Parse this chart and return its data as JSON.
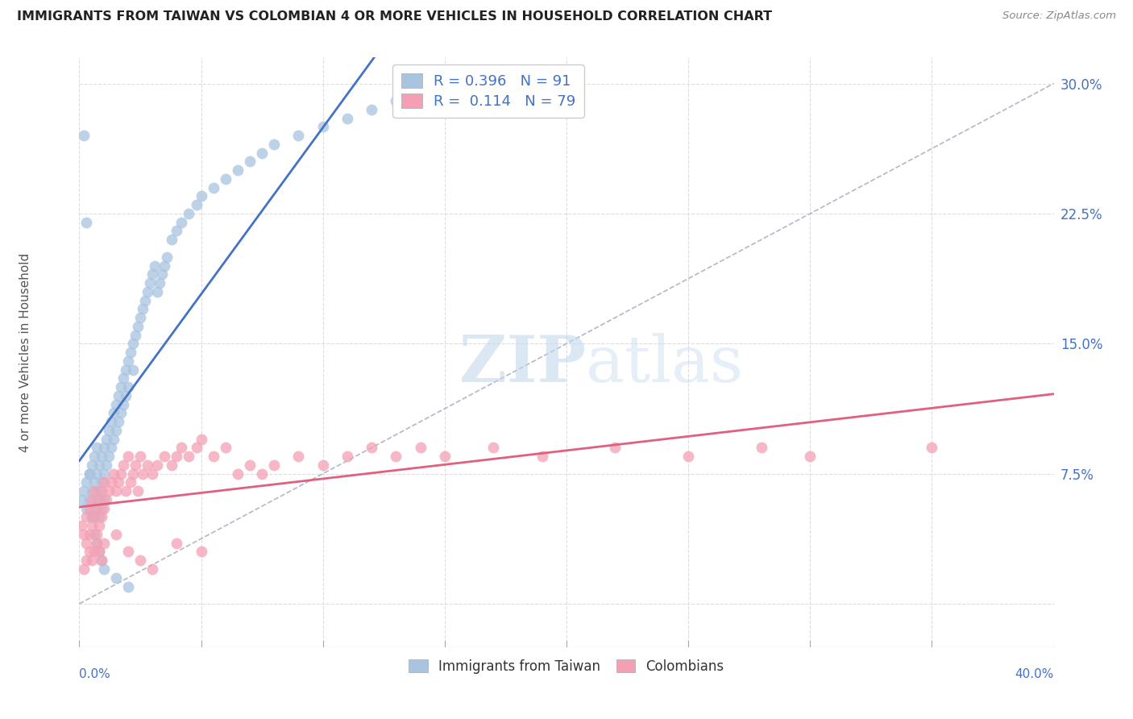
{
  "title": "IMMIGRANTS FROM TAIWAN VS COLOMBIAN 4 OR MORE VEHICLES IN HOUSEHOLD CORRELATION CHART",
  "source": "Source: ZipAtlas.com",
  "ylabel": "4 or more Vehicles in Household",
  "ytick_values": [
    0.0,
    0.075,
    0.15,
    0.225,
    0.3
  ],
  "ytick_labels": [
    "",
    "7.5%",
    "15.0%",
    "22.5%",
    "30.0%"
  ],
  "xlim": [
    0.0,
    0.4
  ],
  "ylim": [
    -0.025,
    0.315
  ],
  "taiwan_R": 0.396,
  "taiwan_N": 91,
  "colombian_R": 0.114,
  "colombian_N": 79,
  "taiwan_color": "#a8c4e0",
  "colombian_color": "#f4a0b4",
  "taiwan_line_color": "#4472c4",
  "colombian_line_color": "#e06080",
  "taiwan_scatter_x": [
    0.001,
    0.002,
    0.003,
    0.003,
    0.004,
    0.004,
    0.005,
    0.005,
    0.005,
    0.006,
    0.006,
    0.006,
    0.007,
    0.007,
    0.007,
    0.008,
    0.008,
    0.008,
    0.009,
    0.009,
    0.009,
    0.01,
    0.01,
    0.01,
    0.011,
    0.011,
    0.012,
    0.012,
    0.013,
    0.013,
    0.014,
    0.014,
    0.015,
    0.015,
    0.016,
    0.016,
    0.017,
    0.017,
    0.018,
    0.018,
    0.019,
    0.019,
    0.02,
    0.02,
    0.021,
    0.022,
    0.022,
    0.023,
    0.024,
    0.025,
    0.026,
    0.027,
    0.028,
    0.029,
    0.03,
    0.031,
    0.032,
    0.033,
    0.034,
    0.035,
    0.036,
    0.038,
    0.04,
    0.042,
    0.045,
    0.048,
    0.05,
    0.055,
    0.06,
    0.065,
    0.07,
    0.075,
    0.08,
    0.09,
    0.1,
    0.11,
    0.12,
    0.13,
    0.15,
    0.17,
    0.002,
    0.003,
    0.004,
    0.005,
    0.006,
    0.007,
    0.008,
    0.009,
    0.01,
    0.015,
    0.02
  ],
  "taiwan_scatter_y": [
    0.06,
    0.065,
    0.07,
    0.055,
    0.075,
    0.06,
    0.08,
    0.065,
    0.05,
    0.085,
    0.07,
    0.055,
    0.09,
    0.075,
    0.06,
    0.08,
    0.065,
    0.05,
    0.085,
    0.07,
    0.055,
    0.09,
    0.075,
    0.06,
    0.095,
    0.08,
    0.1,
    0.085,
    0.105,
    0.09,
    0.11,
    0.095,
    0.115,
    0.1,
    0.12,
    0.105,
    0.125,
    0.11,
    0.13,
    0.115,
    0.135,
    0.12,
    0.14,
    0.125,
    0.145,
    0.15,
    0.135,
    0.155,
    0.16,
    0.165,
    0.17,
    0.175,
    0.18,
    0.185,
    0.19,
    0.195,
    0.18,
    0.185,
    0.19,
    0.195,
    0.2,
    0.21,
    0.215,
    0.22,
    0.225,
    0.23,
    0.235,
    0.24,
    0.245,
    0.25,
    0.255,
    0.26,
    0.265,
    0.27,
    0.275,
    0.28,
    0.285,
    0.29,
    0.295,
    0.3,
    0.27,
    0.22,
    0.075,
    0.05,
    0.04,
    0.035,
    0.03,
    0.025,
    0.02,
    0.015,
    0.01
  ],
  "colombian_scatter_x": [
    0.001,
    0.002,
    0.003,
    0.003,
    0.004,
    0.004,
    0.005,
    0.005,
    0.006,
    0.006,
    0.007,
    0.007,
    0.008,
    0.008,
    0.009,
    0.009,
    0.01,
    0.01,
    0.011,
    0.012,
    0.013,
    0.014,
    0.015,
    0.016,
    0.017,
    0.018,
    0.019,
    0.02,
    0.021,
    0.022,
    0.023,
    0.024,
    0.025,
    0.026,
    0.028,
    0.03,
    0.032,
    0.035,
    0.038,
    0.04,
    0.042,
    0.045,
    0.048,
    0.05,
    0.055,
    0.06,
    0.065,
    0.07,
    0.075,
    0.08,
    0.09,
    0.1,
    0.11,
    0.12,
    0.13,
    0.14,
    0.15,
    0.17,
    0.19,
    0.22,
    0.25,
    0.28,
    0.3,
    0.35,
    0.002,
    0.003,
    0.004,
    0.005,
    0.006,
    0.007,
    0.008,
    0.009,
    0.01,
    0.015,
    0.02,
    0.025,
    0.03,
    0.04,
    0.05
  ],
  "colombian_scatter_y": [
    0.045,
    0.04,
    0.05,
    0.035,
    0.055,
    0.04,
    0.06,
    0.045,
    0.065,
    0.05,
    0.055,
    0.04,
    0.06,
    0.045,
    0.065,
    0.05,
    0.07,
    0.055,
    0.06,
    0.065,
    0.07,
    0.075,
    0.065,
    0.07,
    0.075,
    0.08,
    0.065,
    0.085,
    0.07,
    0.075,
    0.08,
    0.065,
    0.085,
    0.075,
    0.08,
    0.075,
    0.08,
    0.085,
    0.08,
    0.085,
    0.09,
    0.085,
    0.09,
    0.095,
    0.085,
    0.09,
    0.075,
    0.08,
    0.075,
    0.08,
    0.085,
    0.08,
    0.085,
    0.09,
    0.085,
    0.09,
    0.085,
    0.09,
    0.085,
    0.09,
    0.085,
    0.09,
    0.085,
    0.09,
    0.02,
    0.025,
    0.03,
    0.025,
    0.03,
    0.035,
    0.03,
    0.025,
    0.035,
    0.04,
    0.03,
    0.025,
    0.02,
    0.035,
    0.03
  ],
  "watermark_zip": "ZIP",
  "watermark_atlas": "atlas",
  "legend_taiwan_label": "Immigrants from Taiwan",
  "legend_colombian_label": "Colombians",
  "dashed_line_x": [
    0.0,
    0.4
  ],
  "dashed_line_y": [
    0.0,
    0.3
  ],
  "grid_color": "#dddddd",
  "xtick_vals": [
    0.0,
    0.05,
    0.1,
    0.15,
    0.2,
    0.25,
    0.3,
    0.35,
    0.4
  ]
}
